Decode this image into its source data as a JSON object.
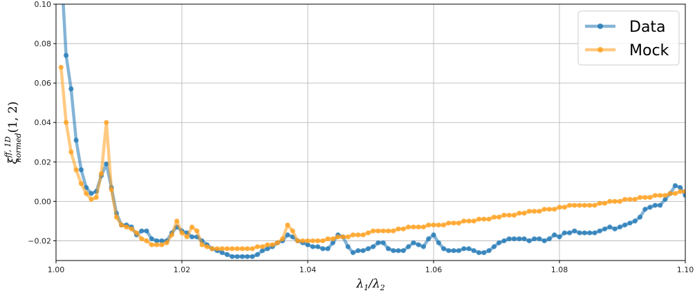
{
  "chart_data": {
    "type": "line",
    "title": "",
    "xlabel": "λ1/λ2",
    "ylabel": "ξ ff,1D normed (1,2)",
    "xlim": [
      1.0,
      1.1
    ],
    "ylim": [
      -0.03,
      0.1
    ],
    "xticks": [
      "1.00",
      "1.02",
      "1.04",
      "1.06",
      "1.08",
      "1.10"
    ],
    "yticks": [
      "−0.02",
      "0.00",
      "0.02",
      "0.04",
      "0.06",
      "0.08",
      "0.10"
    ],
    "grid": true,
    "legend_position": "top-right",
    "series": [
      {
        "name": "Data",
        "color": "#1f77b4",
        "points": [
          [
            1.0008,
            0.12
          ],
          [
            1.0016,
            0.074
          ],
          [
            1.0024,
            0.057
          ],
          [
            1.0032,
            0.031
          ],
          [
            1.004,
            0.016
          ],
          [
            1.0048,
            0.007
          ],
          [
            1.0056,
            0.004
          ],
          [
            1.0064,
            0.005
          ],
          [
            1.0072,
            0.013
          ],
          [
            1.008,
            0.019
          ],
          [
            1.0088,
            0.007
          ],
          [
            1.0096,
            -0.006
          ],
          [
            1.0104,
            -0.012
          ],
          [
            1.0112,
            -0.012
          ],
          [
            1.012,
            -0.013
          ],
          [
            1.0128,
            -0.017
          ],
          [
            1.0136,
            -0.015
          ],
          [
            1.0144,
            -0.015
          ],
          [
            1.0152,
            -0.019
          ],
          [
            1.016,
            -0.02
          ],
          [
            1.0168,
            -0.02
          ],
          [
            1.0176,
            -0.02
          ],
          [
            1.0184,
            -0.016
          ],
          [
            1.0192,
            -0.013
          ],
          [
            1.02,
            -0.015
          ],
          [
            1.0208,
            -0.016
          ],
          [
            1.0216,
            -0.018
          ],
          [
            1.0224,
            -0.018
          ],
          [
            1.0232,
            -0.02
          ],
          [
            1.024,
            -0.022
          ],
          [
            1.0248,
            -0.024
          ],
          [
            1.0256,
            -0.025
          ],
          [
            1.0264,
            -0.026
          ],
          [
            1.0272,
            -0.027
          ],
          [
            1.028,
            -0.028
          ],
          [
            1.0288,
            -0.028
          ],
          [
            1.0296,
            -0.028
          ],
          [
            1.0304,
            -0.028
          ],
          [
            1.0312,
            -0.028
          ],
          [
            1.032,
            -0.027
          ],
          [
            1.0328,
            -0.025
          ],
          [
            1.0336,
            -0.024
          ],
          [
            1.0344,
            -0.023
          ],
          [
            1.0352,
            -0.021
          ],
          [
            1.036,
            -0.02
          ],
          [
            1.0368,
            -0.017
          ],
          [
            1.0376,
            -0.018
          ],
          [
            1.0384,
            -0.02
          ],
          [
            1.0392,
            -0.021
          ],
          [
            1.04,
            -0.022
          ],
          [
            1.0408,
            -0.023
          ],
          [
            1.0416,
            -0.023
          ],
          [
            1.0424,
            -0.024
          ],
          [
            1.0432,
            -0.024
          ],
          [
            1.044,
            -0.021
          ],
          [
            1.0448,
            -0.017
          ],
          [
            1.0456,
            -0.018
          ],
          [
            1.0464,
            -0.023
          ],
          [
            1.0472,
            -0.026
          ],
          [
            1.048,
            -0.025
          ],
          [
            1.0488,
            -0.025
          ],
          [
            1.0496,
            -0.024
          ],
          [
            1.0504,
            -0.023
          ],
          [
            1.0512,
            -0.021
          ],
          [
            1.052,
            -0.021
          ],
          [
            1.0528,
            -0.024
          ],
          [
            1.0536,
            -0.025
          ],
          [
            1.0544,
            -0.025
          ],
          [
            1.0552,
            -0.025
          ],
          [
            1.056,
            -0.023
          ],
          [
            1.0568,
            -0.021
          ],
          [
            1.0576,
            -0.022
          ],
          [
            1.0584,
            -0.023
          ],
          [
            1.0592,
            -0.019
          ],
          [
            1.06,
            -0.017
          ],
          [
            1.0608,
            -0.021
          ],
          [
            1.0616,
            -0.024
          ],
          [
            1.0624,
            -0.025
          ],
          [
            1.0632,
            -0.025
          ],
          [
            1.064,
            -0.025
          ],
          [
            1.0648,
            -0.024
          ],
          [
            1.0656,
            -0.024
          ],
          [
            1.0664,
            -0.025
          ],
          [
            1.0672,
            -0.026
          ],
          [
            1.068,
            -0.026
          ],
          [
            1.0688,
            -0.025
          ],
          [
            1.0696,
            -0.023
          ],
          [
            1.0704,
            -0.021
          ],
          [
            1.0712,
            -0.02
          ],
          [
            1.072,
            -0.019
          ],
          [
            1.0728,
            -0.019
          ],
          [
            1.0736,
            -0.019
          ],
          [
            1.0744,
            -0.019
          ],
          [
            1.0752,
            -0.02
          ],
          [
            1.076,
            -0.019
          ],
          [
            1.0768,
            -0.019
          ],
          [
            1.0776,
            -0.02
          ],
          [
            1.0784,
            -0.019
          ],
          [
            1.0792,
            -0.017
          ],
          [
            1.08,
            -0.018
          ],
          [
            1.0808,
            -0.016
          ],
          [
            1.0816,
            -0.016
          ],
          [
            1.0824,
            -0.015
          ],
          [
            1.0832,
            -0.016
          ],
          [
            1.084,
            -0.016
          ],
          [
            1.0848,
            -0.016
          ],
          [
            1.0856,
            -0.016
          ],
          [
            1.0864,
            -0.015
          ],
          [
            1.0872,
            -0.014
          ],
          [
            1.088,
            -0.013
          ],
          [
            1.0888,
            -0.014
          ],
          [
            1.0896,
            -0.013
          ],
          [
            1.0904,
            -0.012
          ],
          [
            1.0912,
            -0.011
          ],
          [
            1.092,
            -0.01
          ],
          [
            1.0928,
            -0.008
          ],
          [
            1.0936,
            -0.004
          ],
          [
            1.0944,
            -0.003
          ],
          [
            1.0952,
            -0.002
          ],
          [
            1.096,
            -0.002
          ],
          [
            1.0968,
            0.001
          ],
          [
            1.0976,
            0.004
          ],
          [
            1.0984,
            0.008
          ],
          [
            1.0992,
            0.007
          ],
          [
            1.1,
            0.003
          ]
        ]
      },
      {
        "name": "Mock",
        "color": "#ff9f1c",
        "points": [
          [
            1.0008,
            0.068
          ],
          [
            1.0016,
            0.04
          ],
          [
            1.0024,
            0.025
          ],
          [
            1.0032,
            0.016
          ],
          [
            1.004,
            0.009
          ],
          [
            1.0048,
            0.004
          ],
          [
            1.0056,
            0.001
          ],
          [
            1.0064,
            0.002
          ],
          [
            1.0072,
            0.014
          ],
          [
            1.008,
            0.04
          ],
          [
            1.0088,
            0.006
          ],
          [
            1.0096,
            -0.008
          ],
          [
            1.0104,
            -0.012
          ],
          [
            1.0112,
            -0.013
          ],
          [
            1.012,
            -0.014
          ],
          [
            1.0128,
            -0.016
          ],
          [
            1.0136,
            -0.019
          ],
          [
            1.0144,
            -0.02
          ],
          [
            1.0152,
            -0.022
          ],
          [
            1.016,
            -0.022
          ],
          [
            1.0168,
            -0.022
          ],
          [
            1.0176,
            -0.021
          ],
          [
            1.0184,
            -0.017
          ],
          [
            1.0192,
            -0.01
          ],
          [
            1.02,
            -0.016
          ],
          [
            1.0208,
            -0.018
          ],
          [
            1.0216,
            -0.013
          ],
          [
            1.0224,
            -0.015
          ],
          [
            1.0232,
            -0.022
          ],
          [
            1.024,
            -0.023
          ],
          [
            1.0248,
            -0.024
          ],
          [
            1.0256,
            -0.024
          ],
          [
            1.0264,
            -0.024
          ],
          [
            1.0272,
            -0.024
          ],
          [
            1.028,
            -0.024
          ],
          [
            1.0288,
            -0.024
          ],
          [
            1.0296,
            -0.024
          ],
          [
            1.0304,
            -0.024
          ],
          [
            1.0312,
            -0.024
          ],
          [
            1.032,
            -0.023
          ],
          [
            1.0328,
            -0.023
          ],
          [
            1.0336,
            -0.022
          ],
          [
            1.0344,
            -0.022
          ],
          [
            1.0352,
            -0.021
          ],
          [
            1.036,
            -0.019
          ],
          [
            1.0368,
            -0.012
          ],
          [
            1.0376,
            -0.015
          ],
          [
            1.0384,
            -0.02
          ],
          [
            1.0392,
            -0.02
          ],
          [
            1.04,
            -0.02
          ],
          [
            1.0408,
            -0.02
          ],
          [
            1.0416,
            -0.02
          ],
          [
            1.0424,
            -0.02
          ],
          [
            1.0432,
            -0.019
          ],
          [
            1.044,
            -0.019
          ],
          [
            1.0448,
            -0.018
          ],
          [
            1.0456,
            -0.018
          ],
          [
            1.0464,
            -0.018
          ],
          [
            1.0472,
            -0.017
          ],
          [
            1.048,
            -0.017
          ],
          [
            1.0488,
            -0.017
          ],
          [
            1.0496,
            -0.016
          ],
          [
            1.0504,
            -0.015
          ],
          [
            1.0512,
            -0.015
          ],
          [
            1.052,
            -0.015
          ],
          [
            1.0528,
            -0.015
          ],
          [
            1.0536,
            -0.015
          ],
          [
            1.0544,
            -0.014
          ],
          [
            1.0552,
            -0.014
          ],
          [
            1.056,
            -0.013
          ],
          [
            1.0568,
            -0.013
          ],
          [
            1.0576,
            -0.013
          ],
          [
            1.0584,
            -0.013
          ],
          [
            1.0592,
            -0.012
          ],
          [
            1.06,
            -0.012
          ],
          [
            1.0608,
            -0.012
          ],
          [
            1.0616,
            -0.012
          ],
          [
            1.0624,
            -0.011
          ],
          [
            1.0632,
            -0.011
          ],
          [
            1.064,
            -0.011
          ],
          [
            1.0648,
            -0.01
          ],
          [
            1.0656,
            -0.01
          ],
          [
            1.0664,
            -0.01
          ],
          [
            1.0672,
            -0.009
          ],
          [
            1.068,
            -0.009
          ],
          [
            1.0688,
            -0.009
          ],
          [
            1.0696,
            -0.008
          ],
          [
            1.0704,
            -0.008
          ],
          [
            1.0712,
            -0.007
          ],
          [
            1.072,
            -0.007
          ],
          [
            1.0728,
            -0.007
          ],
          [
            1.0736,
            -0.006
          ],
          [
            1.0744,
            -0.006
          ],
          [
            1.0752,
            -0.005
          ],
          [
            1.076,
            -0.005
          ],
          [
            1.0768,
            -0.005
          ],
          [
            1.0776,
            -0.004
          ],
          [
            1.0784,
            -0.004
          ],
          [
            1.0792,
            -0.004
          ],
          [
            1.08,
            -0.003
          ],
          [
            1.0808,
            -0.003
          ],
          [
            1.0816,
            -0.002
          ],
          [
            1.0824,
            -0.002
          ],
          [
            1.0832,
            -0.002
          ],
          [
            1.084,
            -0.002
          ],
          [
            1.0848,
            -0.002
          ],
          [
            1.0856,
            -0.002
          ],
          [
            1.0864,
            -0.001
          ],
          [
            1.0872,
            -0.001
          ],
          [
            1.088,
            0.0
          ],
          [
            1.0888,
            0.0
          ],
          [
            1.0896,
            0.0
          ],
          [
            1.0904,
            0.001
          ],
          [
            1.0912,
            0.001
          ],
          [
            1.092,
            0.001
          ],
          [
            1.0928,
            0.002
          ],
          [
            1.0936,
            0.002
          ],
          [
            1.0944,
            0.002
          ],
          [
            1.0952,
            0.003
          ],
          [
            1.096,
            0.003
          ],
          [
            1.0968,
            0.003
          ],
          [
            1.0976,
            0.004
          ],
          [
            1.0984,
            0.004
          ],
          [
            1.0992,
            0.005
          ],
          [
            1.1,
            0.005
          ]
        ]
      }
    ]
  }
}
